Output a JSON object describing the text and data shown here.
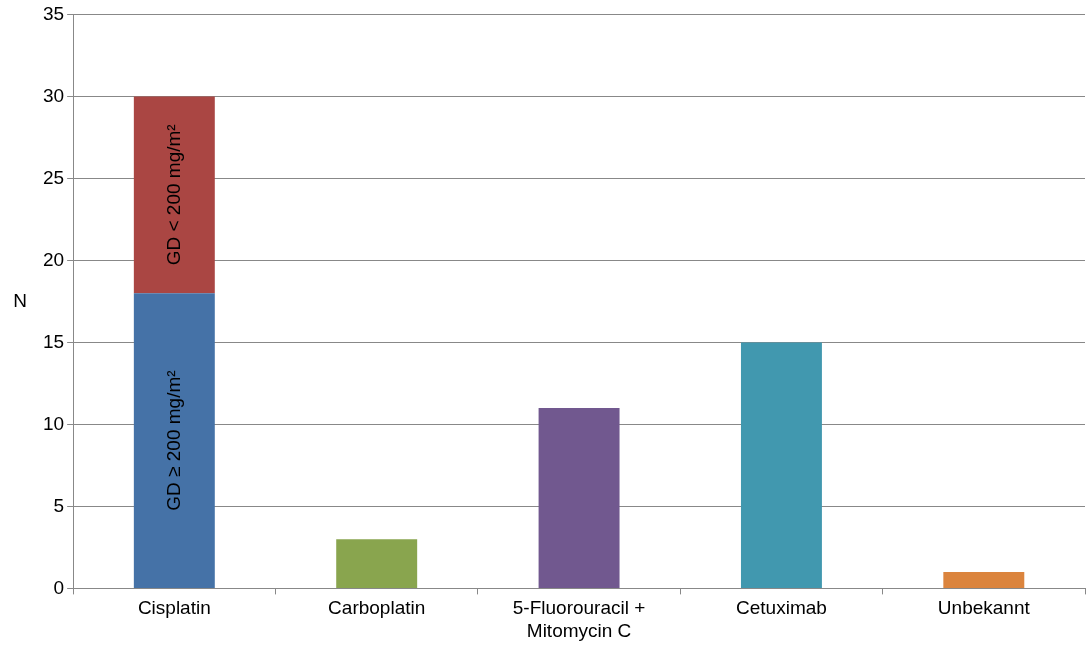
{
  "chart_data": {
    "type": "bar",
    "stacked": true,
    "ylabel": "N",
    "categories": [
      "Cisplatin",
      "Carboplatin",
      "5-Fluorouracil +\nMitomycin C",
      "Cetuximab",
      "Unbekannt"
    ],
    "series": [
      {
        "name": "GD ≥ 200 mg/m²",
        "color": "#4572a7",
        "values": [
          18,
          null,
          null,
          null,
          null
        ]
      },
      {
        "name": "GD < 200 mg/m²",
        "color": "#aa4643",
        "values": [
          12,
          null,
          null,
          null,
          null
        ]
      },
      {
        "colors": [
          "#4572a7",
          "#89a54e",
          "#71588f",
          "#4198af",
          "#db843d"
        ],
        "values": [
          null,
          3,
          11,
          15,
          1
        ]
      }
    ],
    "ylim": [
      0,
      35
    ],
    "yticks": [
      0,
      5,
      10,
      15,
      20,
      25,
      30,
      35
    ],
    "grid": "y",
    "legend": false
  }
}
